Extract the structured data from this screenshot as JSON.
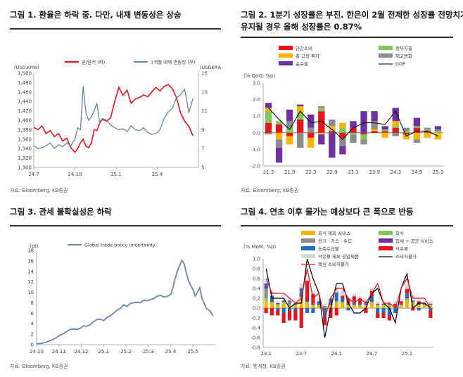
{
  "panels": [
    {
      "title": "그림 1. 환율은 하락 중. 다만, 내재 변동성은 상승",
      "source": "자료: Bloomberg, KB증권",
      "chart_data": {
        "type": "line",
        "left_axis_unit": "(USD.KRW)",
        "right_axis_unit": "(USDKRW)",
        "x_ticks": [
          "24.7",
          "24.10",
          "25.1",
          "25.4"
        ],
        "x_range": [
          0,
          12
        ],
        "ylim_left": [
          1300,
          1500
        ],
        "yticks_left": [
          1300,
          1320,
          1340,
          1360,
          1380,
          1400,
          1420,
          1440,
          1460,
          1480,
          1500
        ],
        "ylim_right": [
          5,
          15
        ],
        "yticks_right": [
          5,
          7,
          9,
          11,
          13,
          15
        ],
        "series": [
          {
            "name": "원/달러 (좌)",
            "axis": "left",
            "color": "#e8141d",
            "x": [
              0,
              0.3,
              0.6,
              0.9,
              1.2,
              1.5,
              1.8,
              2.1,
              2.4,
              2.7,
              3.0,
              3.2,
              3.4,
              3.6,
              3.8,
              4.0,
              4.2,
              4.4,
              4.6,
              4.8,
              5.0,
              5.3,
              5.6,
              5.9,
              6.2,
              6.5,
              6.8,
              7.1,
              7.4,
              7.7,
              8.0,
              8.3,
              8.6,
              8.9,
              9.2,
              9.5,
              9.8,
              10.1,
              10.4,
              10.7,
              11.0,
              11.3,
              11.6
            ],
            "values": [
              1385,
              1380,
              1388,
              1372,
              1378,
              1365,
              1372,
              1356,
              1362,
              1342,
              1332,
              1340,
              1352,
              1360,
              1345,
              1342,
              1352,
              1380,
              1378,
              1394,
              1402,
              1398,
              1405,
              1440,
              1470,
              1453,
              1464,
              1436,
              1445,
              1448,
              1454,
              1450,
              1460,
              1470,
              1462,
              1472,
              1476,
              1467,
              1448,
              1416,
              1398,
              1387,
              1367
            ]
          },
          {
            "name": "1개월 내재 변동성 (우)",
            "axis": "right",
            "color": "#6a86a3",
            "x": [
              0,
              0.3,
              0.6,
              0.9,
              1.2,
              1.5,
              1.8,
              2.1,
              2.4,
              2.7,
              3.0,
              3.2,
              3.4,
              3.6,
              3.8,
              4.0,
              4.2,
              4.4,
              4.6,
              4.8,
              5.0,
              5.3,
              5.6,
              5.9,
              6.2,
              6.5,
              6.8,
              7.1,
              7.4,
              7.7,
              8.0,
              8.3,
              8.6,
              8.9,
              9.2,
              9.5,
              9.8,
              10.1,
              10.4,
              10.7,
              11.0,
              11.3,
              11.6
            ],
            "values": [
              7.3,
              7.0,
              7.1,
              7.3,
              7.6,
              7.0,
              7.4,
              7.2,
              7.6,
              7.3,
              8.0,
              9.2,
              9.0,
              13.6,
              10.8,
              10.0,
              10.4,
              11.0,
              11.8,
              9.8,
              10.2,
              10.0,
              9.5,
              9.2,
              9.0,
              9.1,
              8.8,
              9.4,
              9.0,
              8.9,
              9.2,
              8.7,
              8.5,
              8.6,
              9.0,
              10.2,
              10.9,
              11.3,
              12.4,
              12.7,
              13.3,
              10.8,
              12.3
            ]
          }
        ]
      }
    },
    {
      "title_line1": "그림 2. 1분기 성장률은 부진. 한은이 2월 전제한 성장률 전망치가",
      "title_line2": "유지될 경우 올해 성장률은 0.87%",
      "source": "자료: Bloomberg, KB증권",
      "chart_data": {
        "type": "bar",
        "unit": "(% QoQ, %p)",
        "ylim": [
          -2.0,
          3.0
        ],
        "yticks": [
          -2.0,
          -1.0,
          0.0,
          1.0,
          2.0,
          3.0
        ],
        "x_ticks": [
          "21.3",
          "21.9",
          "22.3",
          "22.9",
          "23.3",
          "23.9",
          "24.3",
          "24.9",
          "25.3"
        ],
        "x_tick_index": [
          0,
          2,
          4,
          6,
          8,
          10,
          12,
          14,
          16
        ],
        "categories": [
          "21.3",
          "21.6",
          "21.9",
          "21.12",
          "22.3",
          "22.6",
          "22.9",
          "22.12",
          "23.3",
          "23.6",
          "23.9",
          "23.12",
          "24.3",
          "24.6",
          "24.9",
          "24.12",
          "25.3"
        ],
        "stack_series": [
          {
            "name": "민간소비",
            "color": "#e8141d",
            "values": [
              0.6,
              0.5,
              -0.2,
              0.8,
              -0.3,
              1.3,
              0.1,
              -0.3,
              0.3,
              -0.1,
              0.1,
              0.1,
              0.3,
              -0.1,
              0.3,
              0.1,
              0.0
            ]
          },
          {
            "name": "정부지출",
            "color": "#7fc65b",
            "values": [
              0.7,
              0.2,
              0.3,
              0.4,
              0.0,
              0.2,
              0.1,
              0.3,
              -0.1,
              -0.3,
              0.0,
              0.1,
              0.1,
              0.1,
              0.1,
              0.1,
              0.1
            ]
          },
          {
            "name": "총 고정 투자",
            "color": "#f7b500",
            "values": [
              0.2,
              -0.4,
              -0.5,
              0.4,
              -0.6,
              -0.1,
              0.2,
              0.3,
              0.0,
              0.0,
              0.1,
              -0.3,
              0.3,
              -0.3,
              -0.4,
              -0.3,
              -0.4
            ]
          },
          {
            "name": "재고변화",
            "color": "#8c8c8c",
            "values": [
              -0.1,
              -0.5,
              0.4,
              -0.9,
              0.3,
              0.1,
              0.4,
              -0.5,
              -0.5,
              -0.3,
              0.5,
              0.0,
              -0.2,
              0.2,
              -0.2,
              0.1,
              0.1
            ]
          },
          {
            "name": "순수출",
            "color": "#7030a0",
            "values": [
              0.3,
              -0.9,
              0.7,
              0.1,
              0.8,
              -0.6,
              -1.5,
              -0.5,
              0.4,
              1.3,
              0.6,
              0.2,
              0.8,
              0.0,
              0.5,
              0.0,
              0.2
            ]
          }
        ],
        "line_series": {
          "name": "GDP",
          "color": "#000000",
          "values": [
            1.5,
            0.8,
            0.2,
            1.3,
            0.6,
            0.7,
            0.2,
            -0.4,
            0.3,
            0.6,
            0.6,
            0.5,
            1.3,
            -0.2,
            0.1,
            0.1,
            -0.2
          ]
        }
      }
    },
    {
      "title": "그림 3. 관세 불확실성은 하락",
      "source": "자료: Bloomberg, KB증권",
      "chart_data": {
        "type": "line",
        "unit": "(pt)",
        "ylim": [
          0,
          18
        ],
        "yticks": [
          0,
          2,
          4,
          6,
          8,
          10,
          12,
          14,
          16,
          18
        ],
        "x_ticks": [
          "24.10",
          "24.11",
          "24.12",
          "25.1",
          "25.2",
          "25.3",
          "25.4",
          "25.5"
        ],
        "x_range": [
          0,
          8
        ],
        "series": [
          {
            "name": "Global trade policy uncertainty",
            "color": "#6a86a3",
            "x": [
              0,
              0.15,
              0.3,
              0.45,
              0.6,
              0.75,
              0.9,
              1.05,
              1.2,
              1.35,
              1.5,
              1.65,
              1.8,
              1.95,
              2.1,
              2.25,
              2.4,
              2.55,
              2.7,
              2.85,
              3.0,
              3.15,
              3.3,
              3.45,
              3.6,
              3.75,
              3.9,
              4.05,
              4.2,
              4.35,
              4.5,
              4.65,
              4.8,
              4.95,
              5.1,
              5.25,
              5.4,
              5.55,
              5.7,
              5.85,
              6.0,
              6.1,
              6.2,
              6.3,
              6.4,
              6.5,
              6.6,
              6.7,
              6.8,
              6.9,
              7.0,
              7.1,
              7.2,
              7.3,
              7.4,
              7.5,
              7.6,
              7.75,
              7.9
            ],
            "values": [
              0.2,
              0.2,
              0.3,
              0.5,
              0.8,
              1.0,
              1.4,
              1.8,
              2.1,
              2.5,
              2.9,
              3.0,
              2.9,
              3.1,
              3.6,
              3.5,
              3.8,
              4.4,
              4.8,
              4.9,
              4.6,
              5.2,
              5.5,
              6.0,
              6.6,
              6.9,
              7.6,
              7.3,
              7.9,
              8.0,
              8.1,
              8.0,
              8.5,
              8.4,
              8.6,
              8.8,
              9.3,
              9.4,
              9.1,
              9.2,
              9.6,
              10.8,
              12.6,
              14.0,
              15.1,
              16.1,
              15.5,
              13.8,
              12.2,
              11.3,
              10.5,
              9.3,
              10.0,
              10.9,
              8.9,
              7.9,
              6.9,
              6.5,
              5.5
            ]
          }
        ]
      }
    },
    {
      "title": "그림 4. 연초 이후 물가는 예상보다 큰 폭으로 반등",
      "source": "자료: 통계청, KB증권",
      "chart_data": {
        "type": "bar",
        "unit": "(% MoM, %p)",
        "ylim": [
          -0.8,
          1.0
        ],
        "yticks": [
          -0.8,
          -0.6,
          -0.4,
          -0.2,
          0.0,
          0.2,
          0.4,
          0.6,
          0.8,
          1.0
        ],
        "x_ticks": [
          "23.1",
          "23.7",
          "24.1",
          "24.7",
          "25.1"
        ],
        "x_tick_index": [
          0,
          6,
          12,
          18,
          24
        ],
        "categories": [
          "23.1",
          "23.2",
          "23.3",
          "23.4",
          "23.5",
          "23.6",
          "23.7",
          "23.8",
          "23.9",
          "23.10",
          "23.11",
          "23.12",
          "24.1",
          "24.2",
          "24.3",
          "24.4",
          "24.5",
          "24.6",
          "24.7",
          "24.8",
          "24.9",
          "24.10",
          "24.11",
          "24.12",
          "25.1",
          "25.2",
          "25.3",
          "25.4",
          "25.5"
        ],
        "stack_series": [
          {
            "name": "외식 제외 서비스",
            "color": "#f7b500",
            "values": [
              0.15,
              0.1,
              0.05,
              0.1,
              0.05,
              0.05,
              0.2,
              0.1,
              0.05,
              0.05,
              0.0,
              0.05,
              0.1,
              0.1,
              0.05,
              0.05,
              0.05,
              0.05,
              0.1,
              0.05,
              0.05,
              0.05,
              0.0,
              0.05,
              0.15,
              0.1,
              0.05,
              0.05,
              0.05
            ]
          },
          {
            "name": "외식",
            "color": "#7fc65b",
            "values": [
              0.05,
              0.03,
              0.03,
              0.03,
              0.03,
              0.02,
              0.03,
              0.03,
              0.02,
              0.02,
              0.02,
              0.02,
              0.04,
              0.03,
              0.02,
              0.02,
              0.02,
              0.02,
              0.03,
              0.02,
              0.02,
              0.02,
              0.02,
              0.02,
              0.05,
              0.03,
              0.02,
              0.02,
              0.02
            ]
          },
          {
            "name": "전기ㆍ가스ㆍ수도",
            "color": "#8c8c8c",
            "values": [
              0.2,
              0.0,
              0.0,
              0.0,
              0.05,
              0.0,
              0.0,
              0.0,
              0.0,
              0.0,
              0.0,
              0.0,
              0.0,
              0.0,
              0.0,
              0.0,
              0.0,
              0.0,
              0.0,
              0.0,
              0.0,
              0.0,
              0.0,
              0.0,
              0.0,
              0.0,
              0.0,
              0.0,
              0.0
            ]
          },
          {
            "name": "집세 + 공공 서비스",
            "color": "#7030a0",
            "values": [
              0.05,
              0.02,
              0.02,
              0.02,
              0.02,
              0.02,
              0.02,
              0.02,
              0.02,
              0.02,
              0.02,
              0.02,
              0.03,
              0.02,
              0.02,
              0.02,
              0.02,
              0.02,
              0.02,
              0.02,
              0.02,
              0.02,
              0.02,
              0.02,
              0.04,
              0.02,
              0.02,
              0.02,
              0.02
            ]
          },
          {
            "name": "농축수산물",
            "color": "#1f6fbf",
            "values": [
              0.05,
              0.1,
              -0.05,
              -0.1,
              -0.05,
              -0.05,
              0.15,
              -0.1,
              -0.1,
              0.05,
              -0.2,
              0.1,
              0.15,
              0.05,
              -0.05,
              0.05,
              0.0,
              0.05,
              0.1,
              -0.1,
              -0.1,
              -0.15,
              -0.1,
              0.0,
              0.05,
              0.0,
              -0.05,
              0.0,
              -0.05
            ]
          },
          {
            "name": "석유류",
            "color": "#e8141d",
            "values": [
              -0.1,
              -0.15,
              -0.1,
              -0.2,
              -0.2,
              -0.2,
              -0.4,
              0.4,
              0.2,
              0.0,
              -0.15,
              -0.2,
              -0.15,
              0.05,
              0.1,
              0.1,
              0.1,
              -0.1,
              0.1,
              -0.1,
              -0.1,
              -0.1,
              0.05,
              0.05,
              0.1,
              -0.05,
              0.05,
              0.0,
              -0.15
            ]
          },
          {
            "name": "석유류 제외 공업제품",
            "color": "#d9d9d9",
            "values": [
              0.1,
              0.1,
              0.05,
              0.05,
              0.05,
              0.05,
              0.1,
              0.05,
              0.05,
              0.05,
              0.05,
              0.05,
              0.1,
              0.1,
              0.05,
              0.05,
              0.05,
              0.05,
              0.05,
              0.05,
              0.05,
              0.05,
              0.05,
              0.05,
              0.1,
              0.1,
              0.05,
              0.05,
              0.05
            ]
          }
        ],
        "line_series": [
          {
            "name": "소비자물가",
            "color": "#000000",
            "values": [
              0.8,
              0.2,
              0.2,
              0.2,
              0.0,
              0.1,
              0.1,
              1.0,
              0.6,
              0.3,
              -0.6,
              0.0,
              0.5,
              0.5,
              0.1,
              -0.1,
              -0.1,
              0.0,
              0.3,
              0.4,
              0.1,
              0.0,
              -0.3,
              0.4,
              0.7,
              0.0,
              0.1,
              0.1,
              0.0
            ]
          },
          {
            "name": "핵심 소비자물가",
            "color": "#e8141d",
            "values": [
              0.6,
              0.3,
              0.3,
              0.3,
              0.2,
              0.1,
              0.2,
              0.8,
              0.2,
              0.3,
              -0.2,
              0.2,
              0.4,
              0.4,
              0.2,
              0.1,
              0.2,
              0.1,
              0.3,
              0.5,
              0.1,
              0.1,
              0.0,
              0.4,
              0.6,
              0.2,
              0.2,
              0.2,
              0.0
            ]
          }
        ]
      }
    }
  ]
}
